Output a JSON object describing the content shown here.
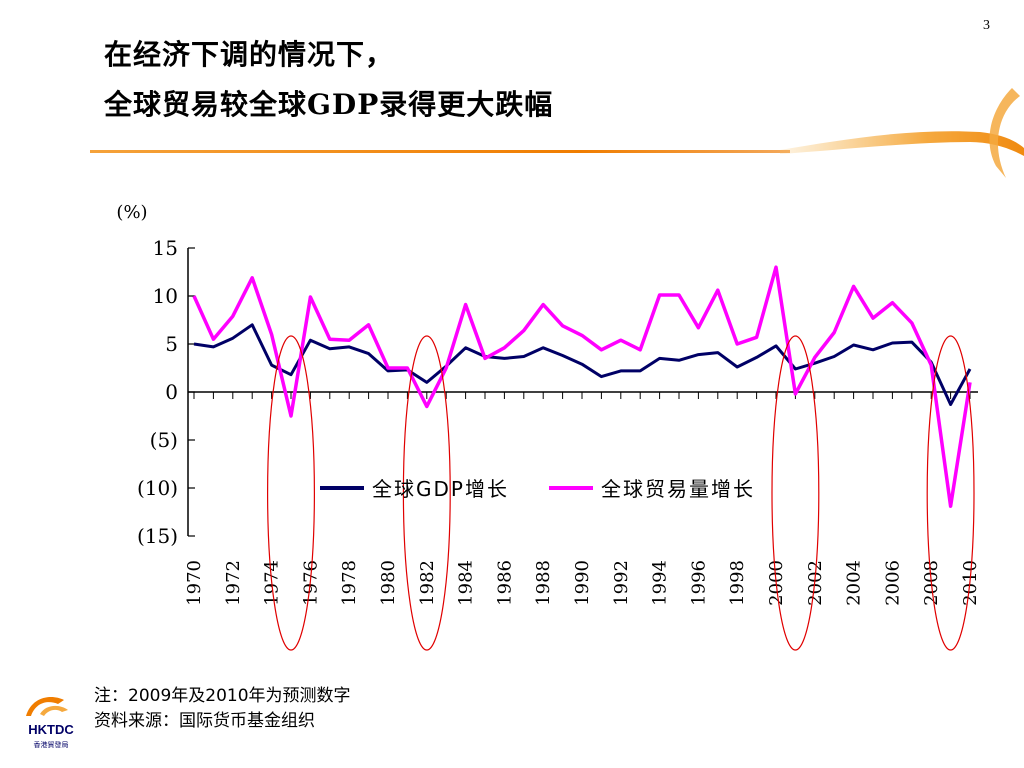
{
  "slide_number": "3",
  "title": {
    "line1": "在经济下调的情况下，",
    "line2": "全球贸易较全球GDP录得更大跌幅"
  },
  "footnote": {
    "note": "注：2009年及2010年为预测数字",
    "source": "资料来源：国际货币基金组织"
  },
  "logo": {
    "text": "HKTDC",
    "subtext": "香港貿發局",
    "color": "#f07d00"
  },
  "colors": {
    "gdp": "#000066",
    "trade": "#ff00ff",
    "highlight": "#e00000",
    "accent": "#f07d00"
  },
  "chart_data": {
    "type": "line",
    "ylabel": "(%)",
    "ylim": [
      -15,
      15
    ],
    "ytick_values": [
      15,
      10,
      5,
      0,
      -5,
      -10,
      -15
    ],
    "ytick_labels": [
      "15",
      "10",
      "5",
      "0",
      "(5)",
      "(10)",
      "(15)"
    ],
    "xlim": [
      1970,
      2010
    ],
    "xtick_labels": [
      "1970",
      "1972",
      "1974",
      "1976",
      "1978",
      "1980",
      "1982",
      "1984",
      "1986",
      "1988",
      "1990",
      "1992",
      "1994",
      "1996",
      "1998",
      "2000",
      "2002",
      "2004",
      "2006",
      "2008",
      "2010"
    ],
    "x": [
      1970,
      1971,
      1972,
      1973,
      1974,
      1975,
      1976,
      1977,
      1978,
      1979,
      1980,
      1981,
      1982,
      1983,
      1984,
      1985,
      1986,
      1987,
      1988,
      1989,
      1990,
      1991,
      1992,
      1993,
      1994,
      1995,
      1996,
      1997,
      1998,
      1999,
      2000,
      2001,
      2002,
      2003,
      2004,
      2005,
      2006,
      2007,
      2008,
      2009,
      2010
    ],
    "series": [
      {
        "name": "全球GDP增长",
        "values": [
          5.0,
          4.7,
          5.6,
          7.0,
          2.8,
          1.8,
          5.4,
          4.5,
          4.7,
          4.0,
          2.2,
          2.3,
          1.0,
          2.7,
          4.6,
          3.7,
          3.5,
          3.7,
          4.6,
          3.8,
          2.9,
          1.6,
          2.2,
          2.2,
          3.5,
          3.3,
          3.9,
          4.1,
          2.6,
          3.6,
          4.8,
          2.4,
          3.0,
          3.7,
          4.9,
          4.4,
          5.1,
          5.2,
          3.1,
          -1.3,
          2.4
        ]
      },
      {
        "name": "全球贸易量增长",
        "values": [
          10.0,
          5.5,
          7.9,
          11.9,
          6.0,
          -2.5,
          9.9,
          5.5,
          5.4,
          7.0,
          2.5,
          2.5,
          -1.5,
          2.5,
          9.1,
          3.5,
          4.6,
          6.4,
          9.1,
          6.9,
          5.9,
          4.4,
          5.4,
          4.4,
          10.1,
          10.1,
          6.7,
          10.6,
          5.0,
          5.7,
          13.0,
          -0.2,
          3.6,
          6.2,
          11.0,
          7.7,
          9.3,
          7.2,
          2.8,
          -11.9,
          1.0
        ]
      }
    ],
    "highlighted_periods": [
      [
        1974,
        1976
      ],
      [
        1981,
        1983
      ],
      [
        2000,
        2002
      ],
      [
        2008,
        2010
      ]
    ],
    "legend_position": "center"
  }
}
